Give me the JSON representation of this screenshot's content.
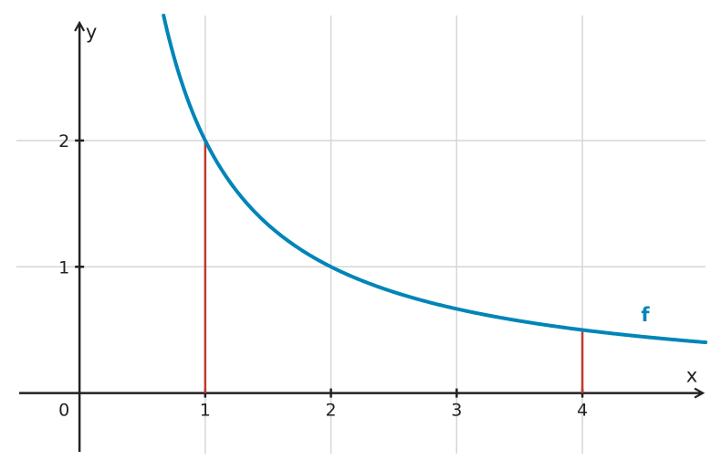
{
  "chart_data": {
    "type": "line",
    "title": "",
    "xlabel": "x",
    "ylabel": "y",
    "xlim": [
      -0.48,
      4.98
    ],
    "ylim": [
      -0.48,
      2.99
    ],
    "x_ticks": [
      1,
      2,
      3,
      4
    ],
    "y_ticks": [
      1,
      2
    ],
    "origin_label": "0",
    "grid": true,
    "series": [
      {
        "name": "f",
        "function": "2/x",
        "x": [
          0.67,
          0.75,
          1,
          1.25,
          1.5,
          2,
          2.5,
          3,
          3.5,
          4,
          4.5,
          4.98
        ],
        "y": [
          2.99,
          2.67,
          2,
          1.6,
          1.33,
          1,
          0.8,
          0.67,
          0.57,
          0.5,
          0.44,
          0.4
        ],
        "color": "#0085b8"
      }
    ],
    "vertical_segments": [
      {
        "x": 1,
        "y_from": 0,
        "y_to": 2,
        "color": "#c0392b"
      },
      {
        "x": 4,
        "y_from": 0,
        "y_to": 0.5,
        "color": "#c0392b"
      }
    ],
    "label_position": {
      "x": 4.5,
      "y": 0.62
    },
    "colors": {
      "axis": "#222222",
      "grid": "#d6d6d6",
      "curve": "#0085b8",
      "segment": "#c0392b"
    }
  }
}
